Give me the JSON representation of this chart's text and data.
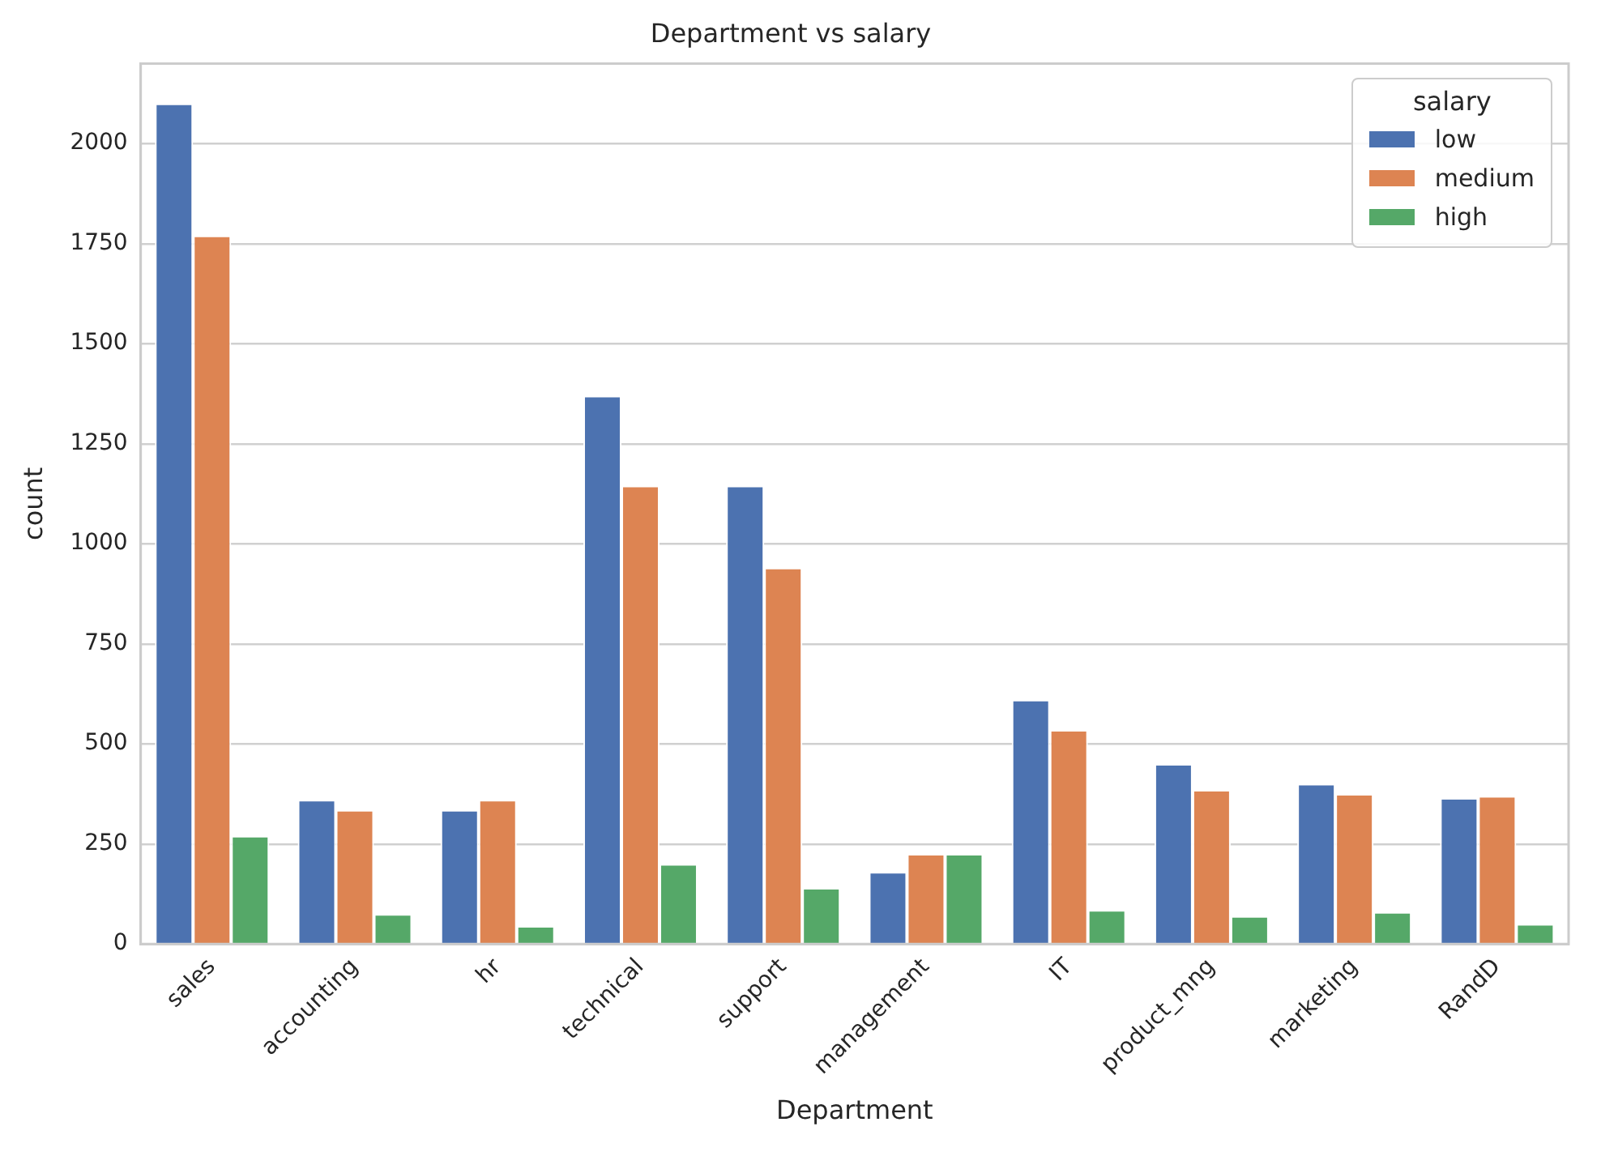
{
  "chart_data": {
    "type": "bar",
    "title": "Department vs salary",
    "xlabel": "Department",
    "ylabel": "count",
    "legend_title": "salary",
    "categories": [
      "sales",
      "accounting",
      "hr",
      "technical",
      "support",
      "management",
      "IT",
      "product_mng",
      "marketing",
      "RandD"
    ],
    "series": [
      {
        "name": "low",
        "color": "#4c72b0",
        "values": [
          2100,
          360,
          335,
          1370,
          1145,
          180,
          610,
          450,
          400,
          365
        ]
      },
      {
        "name": "medium",
        "color": "#dd8452",
        "values": [
          1770,
          335,
          360,
          1145,
          940,
          225,
          535,
          385,
          375,
          370
        ]
      },
      {
        "name": "high",
        "color": "#55a868",
        "values": [
          270,
          75,
          45,
          200,
          140,
          225,
          85,
          70,
          80,
          50
        ]
      }
    ],
    "ylim": [
      0,
      2200
    ],
    "yticks": [
      0,
      250,
      500,
      750,
      1000,
      1250,
      1500,
      1750,
      2000
    ],
    "grid": "y",
    "legend": "top right"
  }
}
